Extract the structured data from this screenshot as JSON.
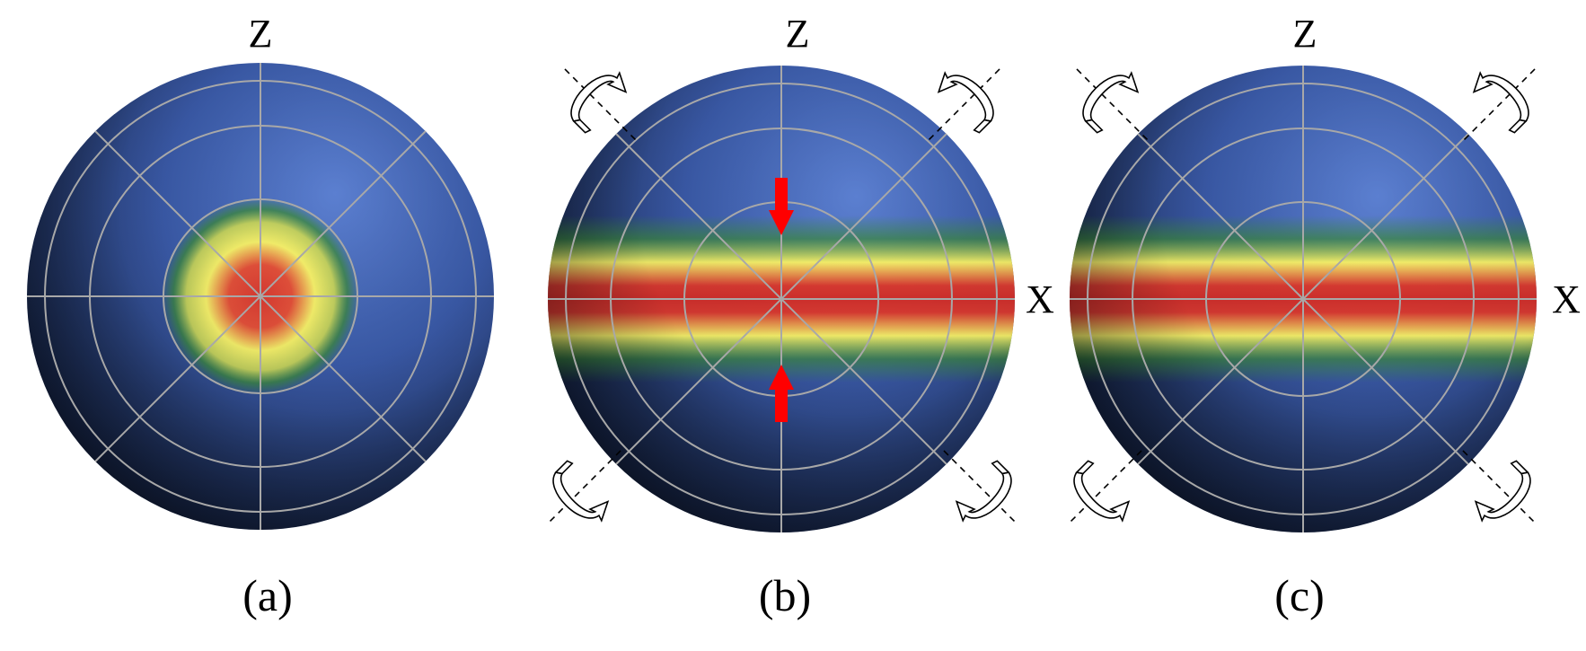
{
  "panels": [
    {
      "id": "a",
      "caption": "(a)",
      "axis_top": "Z",
      "axis_right": "",
      "pattern": "spot",
      "compression_arrows": false,
      "rotation_arrows": false
    },
    {
      "id": "b",
      "caption": "(b)",
      "axis_top": "Z",
      "axis_right": "X",
      "pattern": "band",
      "compression_arrows": true,
      "rotation_arrows": true
    },
    {
      "id": "c",
      "caption": "(c)",
      "axis_top": "Z",
      "axis_right": "X",
      "pattern": "band",
      "compression_arrows": false,
      "rotation_arrows": true
    }
  ],
  "colors": {
    "sphere_light": "#5b7fd0",
    "sphere_mid": "#3a5aa8",
    "sphere_dark": "#0f1a33",
    "heat_red": "#d83a32",
    "heat_yellow": "#f4ef6a",
    "heat_green": "#3c8a3a",
    "grid": "#a8a8a8",
    "compression_arrow": "#ff0000"
  }
}
